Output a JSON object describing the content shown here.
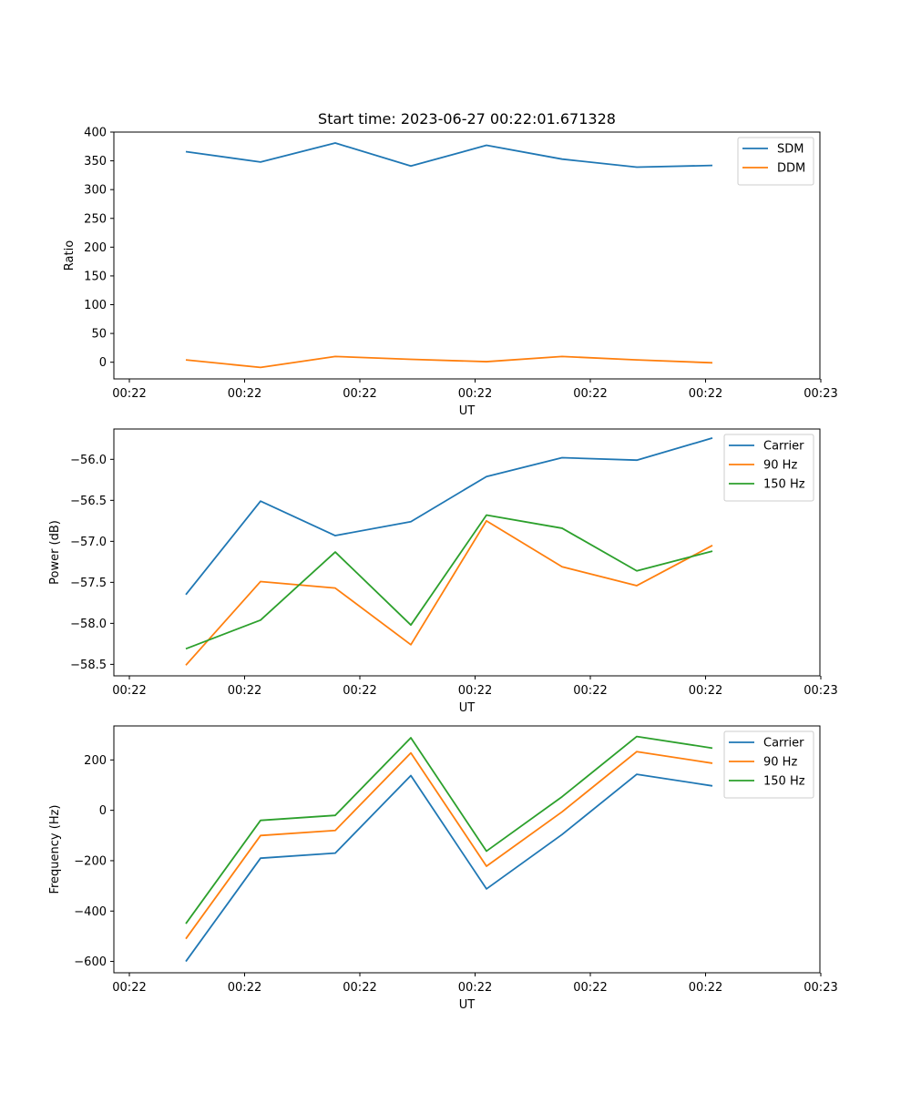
{
  "chart_data": [
    {
      "type": "line",
      "title": "Start time: 2023-06-27 00:22:01.671328",
      "xlabel": "UT",
      "ylabel": "Ratio",
      "x_ticks": [
        "00:22",
        "00:22",
        "00:22",
        "00:22",
        "00:22",
        "00:22",
        "00:23"
      ],
      "y_ticks": [
        "0",
        "50",
        "100",
        "150",
        "200",
        "250",
        "300",
        "350",
        "400"
      ],
      "y_tick_values": [
        0,
        50,
        100,
        150,
        200,
        250,
        300,
        350,
        400
      ],
      "ylim": [
        -29,
        400
      ],
      "legend_position": "top-right",
      "series": [
        {
          "name": "SDM",
          "color": "#1f77b4",
          "values": [
            366,
            348,
            381,
            341,
            377,
            353,
            339,
            342
          ]
        },
        {
          "name": "DDM",
          "color": "#ff7f0e",
          "values": [
            4,
            -9,
            10,
            5,
            1,
            10,
            4,
            -1
          ]
        }
      ]
    },
    {
      "type": "line",
      "title": "",
      "xlabel": "UT",
      "ylabel": "Power (dB)",
      "x_ticks": [
        "00:22",
        "00:22",
        "00:22",
        "00:22",
        "00:22",
        "00:22",
        "00:23"
      ],
      "y_ticks": [
        "−58.5",
        "−58.0",
        "−57.5",
        "−57.0",
        "−56.5",
        "−56.0"
      ],
      "y_tick_values": [
        -58.5,
        -58.0,
        -57.5,
        -57.0,
        -56.5,
        -56.0
      ],
      "ylim": [
        -58.64,
        -55.63
      ],
      "legend_position": "top-right",
      "series": [
        {
          "name": "Carrier",
          "color": "#1f77b4",
          "values": [
            -57.65,
            -56.51,
            -56.93,
            -56.76,
            -56.21,
            -55.98,
            -56.01,
            -55.74
          ]
        },
        {
          "name": "90 Hz",
          "color": "#ff7f0e",
          "values": [
            -58.51,
            -57.49,
            -57.57,
            -58.26,
            -56.75,
            -57.31,
            -57.54,
            -57.05
          ]
        },
        {
          "name": "150 Hz",
          "color": "#2ca02c",
          "values": [
            -58.31,
            -57.96,
            -57.13,
            -58.02,
            -56.68,
            -56.84,
            -57.36,
            -57.12
          ]
        }
      ]
    },
    {
      "type": "line",
      "title": "",
      "xlabel": "UT",
      "ylabel": "Frequency (Hz)",
      "x_ticks": [
        "00:22",
        "00:22",
        "00:22",
        "00:22",
        "00:22",
        "00:22",
        "00:23"
      ],
      "y_ticks": [
        "−600",
        "−400",
        "−200",
        "0",
        "200"
      ],
      "y_tick_values": [
        -600,
        -400,
        -200,
        0,
        200
      ],
      "ylim": [
        -645,
        335
      ],
      "legend_position": "top-right",
      "series": [
        {
          "name": "Carrier",
          "color": "#1f77b4",
          "values": [
            -600,
            -190,
            -170,
            138,
            -312,
            -96,
            143,
            97
          ]
        },
        {
          "name": "90 Hz",
          "color": "#ff7f0e",
          "values": [
            -510,
            -100,
            -80,
            228,
            -222,
            -6,
            233,
            187
          ]
        },
        {
          "name": "150 Hz",
          "color": "#2ca02c",
          "values": [
            -450,
            -40,
            -20,
            288,
            -162,
            54,
            293,
            247
          ]
        }
      ]
    }
  ]
}
